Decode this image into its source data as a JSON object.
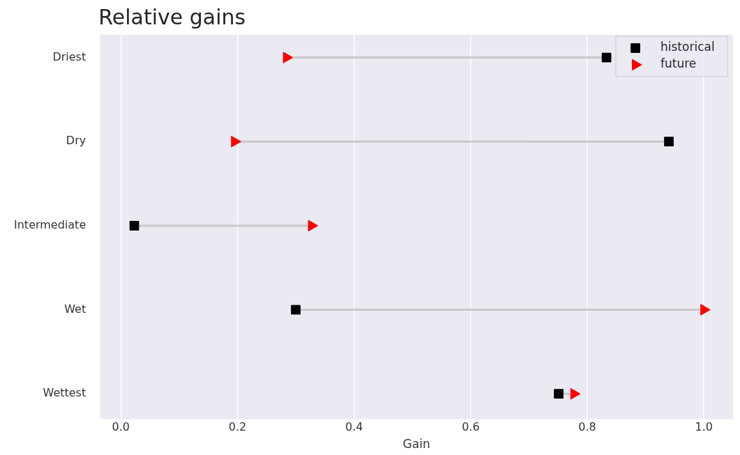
{
  "chart_data": {
    "type": "scatter",
    "title": "Relative gains",
    "xlabel": "Gain",
    "categories": [
      "Driest",
      "Dry",
      "Intermediate",
      "Wet",
      "Wettest"
    ],
    "series": [
      {
        "name": "historical",
        "color": "#000000",
        "marker": "square",
        "values": [
          0.833,
          0.94,
          0.023,
          0.3,
          0.751
        ]
      },
      {
        "name": "future",
        "color": "#ff0000",
        "marker": "triangle",
        "values": [
          0.284,
          0.195,
          0.327,
          1.0,
          0.777
        ]
      }
    ],
    "xlim": [
      -0.036,
      1.05
    ],
    "xticks": [
      {
        "value": 0,
        "label": "0.0"
      },
      {
        "value": 0.2,
        "label": "0.2"
      },
      {
        "value": 0.4,
        "label": "0.4"
      },
      {
        "value": 0.6,
        "label": "0.6"
      },
      {
        "value": 0.8,
        "label": "0.8"
      },
      {
        "value": 1,
        "label": "1.0"
      }
    ],
    "grid": "x",
    "legend": "top right",
    "orientation": "horizontal"
  }
}
